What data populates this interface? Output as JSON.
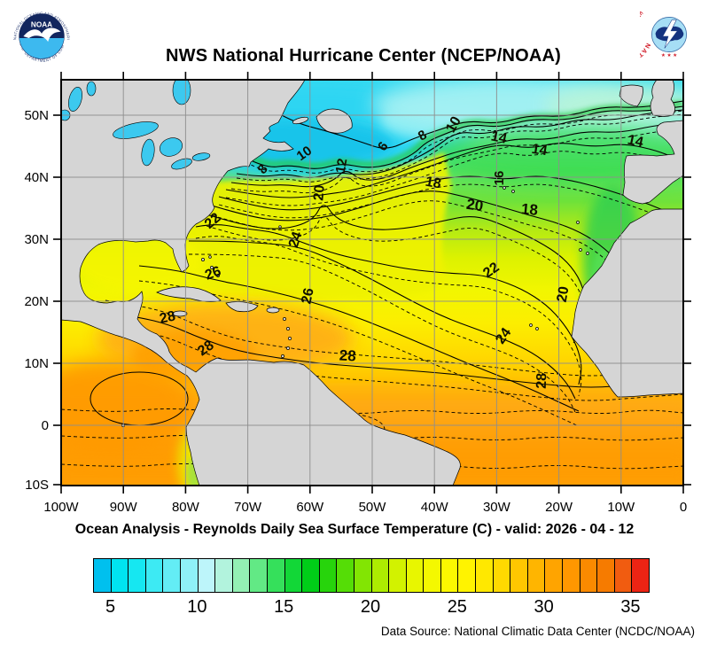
{
  "header": {
    "title": "NWS National Hurricane Center (NCEP/NOAA)",
    "noaa_logo": {
      "ring_text_top": "NATIONAL OCEANIC AND ATMOSPHERIC ADMINISTRATION",
      "ring_text_bottom": "U.S. DEPARTMENT OF COMMERCE",
      "center_text": "NOAA"
    },
    "nws_logo": {
      "ring_text": "NATIONAL WEATHER SERVICE",
      "stars": "★ ★ ★"
    }
  },
  "map": {
    "x_tick_labels": [
      "100W",
      "90W",
      "80W",
      "70W",
      "60W",
      "50W",
      "40W",
      "30W",
      "20W",
      "10W",
      "0"
    ],
    "y_tick_labels": [
      "50N",
      "40N",
      "30N",
      "20N",
      "10N",
      "0",
      "10S"
    ],
    "land_color": "#d5d5d5",
    "lake_color": "#3cc9ef",
    "grid_color": "#8e8e8e"
  },
  "caption": "Ocean Analysis - Reynolds Daily Sea Surface Temperature (C) - valid: 2026 - 04 - 12",
  "colorbar": {
    "min": 4,
    "max": 36,
    "step": 1,
    "tick_labels": [
      "5",
      "10",
      "15",
      "20",
      "25",
      "30",
      "35"
    ],
    "cell_colors": [
      "#00c0ee",
      "#00e4f0",
      "#16e7f1",
      "#3deaf3",
      "#63edf5",
      "#8ff1f7",
      "#bdf5fa",
      "#b2f3dd",
      "#93f0b4",
      "#62e985",
      "#35e05b",
      "#12d737",
      "#00cd18",
      "#27d40c",
      "#55dd06",
      "#82e503",
      "#adec01",
      "#d2f200",
      "#e8f600",
      "#f4f800",
      "#fcf800",
      "#fff300",
      "#ffe800",
      "#ffd900",
      "#ffc700",
      "#ffb500",
      "#ffa400",
      "#ff9700",
      "#fa8a00",
      "#f67b00",
      "#f15c10",
      "#ec2414"
    ]
  },
  "footer": {
    "data_source": "Data Source: National Climatic Data Center (NCDC/NOAA)"
  },
  "chart_data": {
    "type": "heatmap",
    "subtype": "sea-surface-temperature contour analysis map",
    "title": "NWS National Hurricane Center (NCEP/NOAA)",
    "subtitle": "Ocean Analysis - Reynolds Daily Sea Surface Temperature (C) - valid: 2026 - 04 - 12",
    "units": "degrees C",
    "region": {
      "lon_left": "100W",
      "lon_right": "0",
      "lat_top": "56N",
      "lat_bottom": "10S"
    },
    "x_ticks": [
      "100W",
      "90W",
      "80W",
      "70W",
      "60W",
      "50W",
      "40W",
      "30W",
      "20W",
      "10W",
      "0"
    ],
    "y_ticks": [
      "50N",
      "40N",
      "30N",
      "20N",
      "10N",
      "0",
      "10S"
    ],
    "colorbar_range": [
      4,
      36
    ],
    "colorbar_ticks": [
      5,
      10,
      15,
      20,
      25,
      30,
      35
    ],
    "contour_interval": {
      "solid_every_c": 2,
      "dashed_every_c": 1
    },
    "labeled_contours_c": [
      6,
      8,
      10,
      12,
      14,
      16,
      18,
      20,
      22,
      24,
      26,
      28
    ],
    "contour_labels": [
      {
        "v": "8",
        "x": 231,
        "y": 104,
        "r": -50,
        "s": 15
      },
      {
        "v": "10",
        "x": 277,
        "y": 87,
        "r": -35,
        "s": 15
      },
      {
        "v": "12",
        "x": 321,
        "y": 98,
        "r": -80,
        "s": 15
      },
      {
        "v": "6",
        "x": 367,
        "y": 78,
        "r": -55,
        "s": 15
      },
      {
        "v": "8",
        "x": 410,
        "y": 67,
        "r": -30,
        "s": 15
      },
      {
        "v": "10",
        "x": 447,
        "y": 53,
        "r": -60,
        "s": 16
      },
      {
        "v": "14",
        "x": 493,
        "y": 70,
        "r": 12,
        "s": 16
      },
      {
        "v": "14",
        "x": 539,
        "y": 84,
        "r": 8,
        "s": 16
      },
      {
        "v": "14",
        "x": 647,
        "y": 74,
        "r": 12,
        "s": 16
      },
      {
        "v": "16",
        "x": 499,
        "y": 111,
        "r": -90,
        "s": 15
      },
      {
        "v": "18",
        "x": 419,
        "y": 121,
        "r": 10,
        "s": 16
      },
      {
        "v": "18",
        "x": 528,
        "y": 152,
        "r": 5,
        "s": 17
      },
      {
        "v": "20",
        "x": 466,
        "y": 147,
        "r": 8,
        "s": 17
      },
      {
        "v": "20",
        "x": 296,
        "y": 128,
        "r": -85,
        "s": 16
      },
      {
        "v": "22",
        "x": 174,
        "y": 163,
        "r": -40,
        "s": 16
      },
      {
        "v": "24",
        "x": 269,
        "y": 182,
        "r": -72,
        "s": 16
      },
      {
        "v": "26",
        "x": 173,
        "y": 223,
        "r": -20,
        "s": 16
      },
      {
        "v": "28",
        "x": 121,
        "y": 273,
        "r": -12,
        "s": 16
      },
      {
        "v": "28",
        "x": 166,
        "y": 307,
        "r": -35,
        "s": 16
      },
      {
        "v": "28",
        "x": 323,
        "y": 317,
        "r": 3,
        "s": 17
      },
      {
        "v": "26",
        "x": 283,
        "y": 245,
        "r": -78,
        "s": 16
      },
      {
        "v": "22",
        "x": 488,
        "y": 219,
        "r": -35,
        "s": 16
      },
      {
        "v": "20",
        "x": 571,
        "y": 243,
        "r": -80,
        "s": 16
      },
      {
        "v": "24",
        "x": 503,
        "y": 292,
        "r": -55,
        "s": 16
      },
      {
        "v": "28",
        "x": 547,
        "y": 340,
        "r": -88,
        "s": 16
      }
    ]
  }
}
